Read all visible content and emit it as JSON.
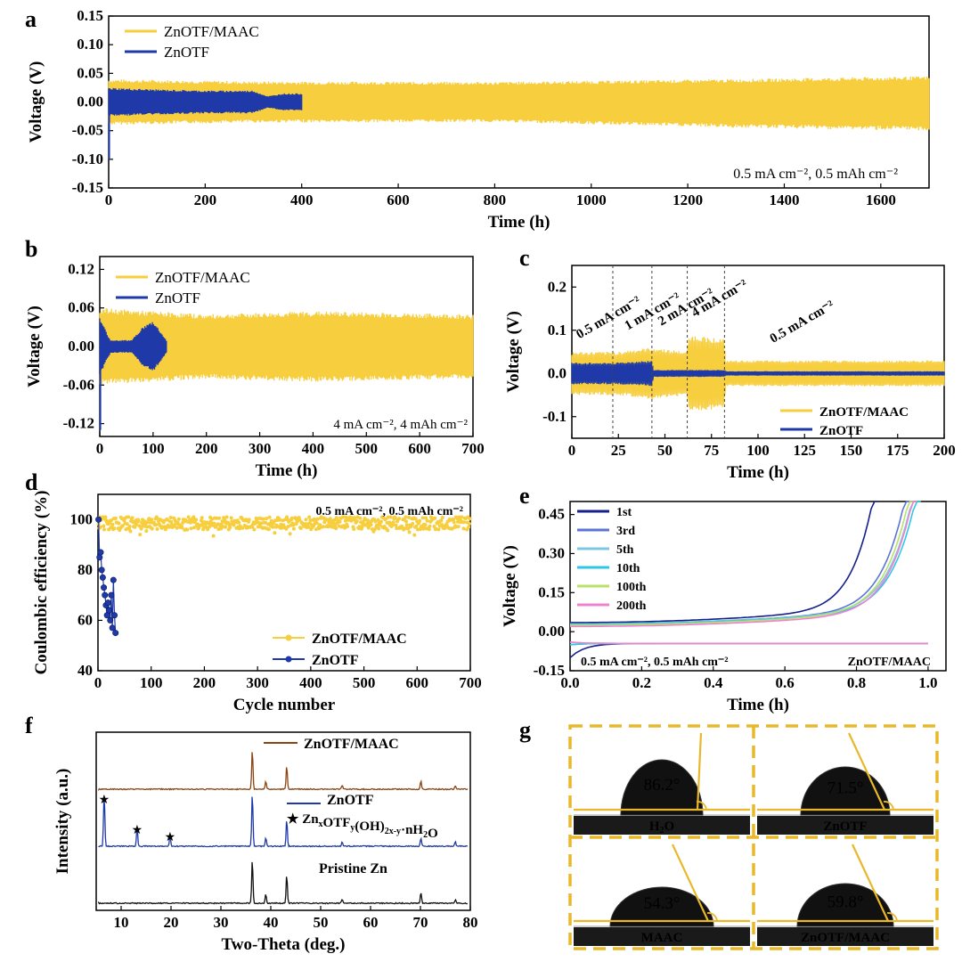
{
  "colors": {
    "maac": "#F7CE3E",
    "otf": "#1F3AA8",
    "xrd_maac": "#8B4513",
    "xrd_otf": "#1F3AA8",
    "xrd_zn": "#111111",
    "frame": "#E8B82A"
  },
  "chart_data": [
    {
      "id": "a",
      "type": "line",
      "panel_label": "a",
      "xlabel": "Time (h)",
      "ylabel": "Voltage (V)",
      "xlim": [
        0,
        1700
      ],
      "ylim": [
        -0.15,
        0.15
      ],
      "xticks": [
        0,
        200,
        400,
        600,
        800,
        1000,
        1200,
        1400,
        1600
      ],
      "yticks": [
        -0.15,
        -0.1,
        -0.05,
        0.0,
        0.05,
        0.1,
        0.15
      ],
      "ytick_labels": [
        "-0.15",
        "-0.10",
        "-0.05",
        "0.00",
        "0.05",
        "0.10",
        "0.15"
      ],
      "annotation": "0.5 mA cm⁻², 0.5 mAh cm⁻²",
      "series": [
        {
          "name": "ZnOTF/MAAC",
          "color_key": "maac",
          "t_end": 1700,
          "env_t": [
            0,
            300,
            800,
            1300,
            1700
          ],
          "env_hi": [
            0.04,
            0.036,
            0.035,
            0.04,
            0.045
          ],
          "env_lo": [
            -0.04,
            -0.036,
            -0.035,
            -0.045,
            -0.05
          ]
        },
        {
          "name": "ZnOTF",
          "color_key": "otf",
          "t_end": 400,
          "env_t": [
            0,
            100,
            200,
            300,
            330,
            360,
            400
          ],
          "env_hi": [
            0.025,
            0.022,
            0.02,
            0.02,
            0.01,
            0.015,
            0.015
          ],
          "env_lo": [
            -0.025,
            -0.022,
            -0.02,
            -0.02,
            -0.01,
            -0.015,
            -0.015
          ],
          "spike": -0.1
        }
      ]
    },
    {
      "id": "b",
      "type": "line",
      "panel_label": "b",
      "xlabel": "Time (h)",
      "ylabel": "Voltage (V)",
      "xlim": [
        0,
        700
      ],
      "ylim": [
        -0.14,
        0.14
      ],
      "xticks": [
        0,
        100,
        200,
        300,
        400,
        500,
        600,
        700
      ],
      "yticks": [
        -0.12,
        -0.06,
        0.0,
        0.06,
        0.12
      ],
      "ytick_labels": [
        "-0.12",
        "-0.06",
        "0.00",
        "0.06",
        "0.12"
      ],
      "annotation": "4 mA cm⁻², 4 mAh cm⁻²",
      "series": [
        {
          "name": "ZnOTF/MAAC",
          "color_key": "maac",
          "t_end": 700,
          "env_t": [
            0,
            200,
            400,
            700
          ],
          "env_hi": [
            0.06,
            0.05,
            0.055,
            0.05
          ],
          "env_lo": [
            -0.06,
            -0.05,
            -0.055,
            -0.05
          ]
        },
        {
          "name": "ZnOTF",
          "color_key": "otf",
          "t_end": 125,
          "env_t": [
            0,
            20,
            60,
            80,
            100,
            125
          ],
          "env_hi": [
            0.045,
            0.01,
            0.01,
            0.03,
            0.04,
            0.01
          ],
          "env_lo": [
            -0.045,
            -0.01,
            -0.01,
            -0.03,
            -0.04,
            -0.01
          ],
          "spike": -0.13
        }
      ]
    },
    {
      "id": "c",
      "type": "line",
      "panel_label": "c",
      "xlabel": "Time (h)",
      "ylabel": "Voltage (V)",
      "xlim": [
        0,
        200
      ],
      "ylim": [
        -0.15,
        0.25
      ],
      "xticks": [
        0,
        25,
        50,
        75,
        100,
        125,
        150,
        175,
        200
      ],
      "yticks": [
        -0.1,
        0.0,
        0.1,
        0.2
      ],
      "ytick_labels": [
        "-0.1",
        "0.0",
        "0.1",
        "0.2"
      ],
      "vlines": [
        22,
        43,
        62,
        82
      ],
      "rate_labels": [
        {
          "text": "0.5 mA cm⁻²",
          "x": 4,
          "y": 0.08
        },
        {
          "text": "1 mA cm⁻²",
          "x": 30,
          "y": 0.1
        },
        {
          "text": "2 mA cm⁻²",
          "x": 48,
          "y": 0.11
        },
        {
          "text": "4 mA cm⁻²",
          "x": 66,
          "y": 0.13
        },
        {
          "text": "0.5 mA cm⁻²",
          "x": 108,
          "y": 0.07
        }
      ],
      "series": [
        {
          "name": "ZnOTF/MAAC",
          "color_key": "maac",
          "t_end": 200,
          "env_t": [
            0,
            22,
            22.5,
            43,
            43.5,
            62,
            62.5,
            82,
            82.5,
            200
          ],
          "env_hi": [
            0.05,
            0.05,
            0.05,
            0.06,
            0.06,
            0.05,
            0.09,
            0.08,
            0.03,
            0.03
          ],
          "env_lo": [
            -0.05,
            -0.05,
            -0.05,
            -0.06,
            -0.06,
            -0.05,
            -0.09,
            -0.08,
            -0.03,
            -0.03
          ]
        },
        {
          "name": "ZnOTF",
          "color_key": "otf",
          "t_end": 200,
          "env_t": [
            0,
            22,
            43,
            44,
            82,
            83,
            200
          ],
          "env_hi": [
            0.025,
            0.025,
            0.03,
            0.008,
            0.008,
            0.005,
            0.005
          ],
          "env_lo": [
            -0.025,
            -0.025,
            -0.03,
            -0.008,
            -0.008,
            -0.005,
            -0.005
          ]
        }
      ]
    },
    {
      "id": "d",
      "type": "scatter",
      "panel_label": "d",
      "xlabel": "Cycle number",
      "ylabel": "Coulombic efficiency (%)",
      "xlim": [
        0,
        700
      ],
      "ylim": [
        40,
        110
      ],
      "xticks": [
        0,
        100,
        200,
        300,
        400,
        500,
        600,
        700
      ],
      "yticks": [
        40,
        60,
        80,
        100
      ],
      "annotation": "0.5 mA cm⁻², 0.5 mAh cm⁻²",
      "series": [
        {
          "name": "ZnOTF/MAAC",
          "color_key": "maac",
          "x_end": 700,
          "mean": 98.5,
          "spread": 2.5
        },
        {
          "name": "ZnOTF",
          "color_key": "otf",
          "x": [
            1,
            3,
            5,
            7,
            9,
            11,
            13,
            15,
            17,
            19,
            21,
            23,
            25,
            27,
            29,
            31,
            33
          ],
          "y": [
            100,
            85,
            87,
            80,
            77,
            73,
            70,
            66,
            62,
            67,
            64,
            60,
            70,
            57,
            76,
            62,
            55
          ]
        }
      ]
    },
    {
      "id": "e",
      "type": "line",
      "panel_label": "e",
      "xlabel": "Time (h)",
      "ylabel": "Voltage (V)",
      "xlim": [
        0,
        1.05
      ],
      "ylim": [
        -0.15,
        0.5
      ],
      "xticks": [
        0.0,
        0.2,
        0.4,
        0.6,
        0.8,
        1.0
      ],
      "xtick_labels": [
        "0.0",
        "0.2",
        "0.4",
        "0.6",
        "0.8",
        "1.0"
      ],
      "yticks": [
        -0.15,
        0.0,
        0.15,
        0.3,
        0.45
      ],
      "ytick_labels": [
        "-0.15",
        "0.00",
        "0.15",
        "0.30",
        "0.45"
      ],
      "annotation": "0.5 mA cm⁻², 0.5 mAh cm⁻²",
      "label": "ZnOTF/MAAC",
      "series": [
        {
          "name": "1st",
          "color": "#16208A",
          "end": 0.86,
          "low": 0.035,
          "dis_start": -0.1
        },
        {
          "name": "3rd",
          "color": "#5B74D6",
          "end": 0.95,
          "low": 0.03,
          "dis_start": -0.05
        },
        {
          "name": "5th",
          "color": "#7FC7E0",
          "end": 0.97,
          "low": 0.03,
          "dis_start": -0.05
        },
        {
          "name": "10th",
          "color": "#2DC8E6",
          "end": 0.98,
          "low": 0.028,
          "dis_start": -0.05
        },
        {
          "name": "100th",
          "color": "#B8E06A",
          "end": 0.96,
          "low": 0.025,
          "dis_start": -0.04
        },
        {
          "name": "200th",
          "color": "#F080D0",
          "end": 0.97,
          "low": 0.02,
          "dis_start": -0.04
        }
      ]
    },
    {
      "id": "f",
      "type": "line",
      "panel_label": "f",
      "xlabel": "Two-Theta (deg.)",
      "ylabel": "Intensity (a.u.)",
      "xlim": [
        5,
        80
      ],
      "xticks": [
        10,
        20,
        30,
        40,
        50,
        60,
        70,
        80
      ],
      "series": [
        {
          "name": "ZnOTF/MAAC",
          "color_key": "xrd_maac",
          "peaks": [
            [
              36.3,
              1.0
            ],
            [
              39.0,
              0.2
            ],
            [
              43.2,
              0.6
            ],
            [
              54.3,
              0.1
            ],
            [
              70.1,
              0.2
            ],
            [
              77.0,
              0.08
            ]
          ]
        },
        {
          "name": "ZnOTF",
          "color_key": "xrd_otf",
          "peaks": [
            [
              6.6,
              1.0
            ],
            [
              13.2,
              0.35
            ],
            [
              19.8,
              0.2
            ],
            [
              36.3,
              1.0
            ],
            [
              39.0,
              0.15
            ],
            [
              43.2,
              0.5
            ],
            [
              54.3,
              0.08
            ],
            [
              70.1,
              0.15
            ],
            [
              77.0,
              0.08
            ]
          ]
        },
        {
          "name": "Pristine Zn",
          "color_key": "xrd_zn",
          "peaks": [
            [
              36.3,
              1.0
            ],
            [
              39.0,
              0.2
            ],
            [
              43.2,
              0.65
            ],
            [
              54.3,
              0.08
            ],
            [
              70.1,
              0.25
            ],
            [
              77.0,
              0.08
            ]
          ]
        }
      ],
      "star_label_pre": "Zn",
      "star_sub_x": "x",
      "star_mid1": "OTF",
      "star_sub_y": "y",
      "star_mid2": "(OH)",
      "star_sub_2xy": "2x-y",
      "star_tail": "·nH",
      "star_sub_2": "2",
      "star_end": "O",
      "star_peaks": [
        6.6,
        13.2,
        19.8
      ]
    }
  ],
  "panel_g": {
    "panel_label": "g",
    "cells": [
      {
        "angle": "86.2°",
        "label_pre": "H",
        "label_sub": "2",
        "label_post": "O"
      },
      {
        "angle": "71.5°",
        "label_pre": "ZnOTF",
        "label_sub": "",
        "label_post": ""
      },
      {
        "angle": "54.3°",
        "label_pre": "MAAC",
        "label_sub": "",
        "label_post": ""
      },
      {
        "angle": "59.8°",
        "label_pre": "ZnOTF/MAAC",
        "label_sub": "",
        "label_post": ""
      }
    ]
  }
}
